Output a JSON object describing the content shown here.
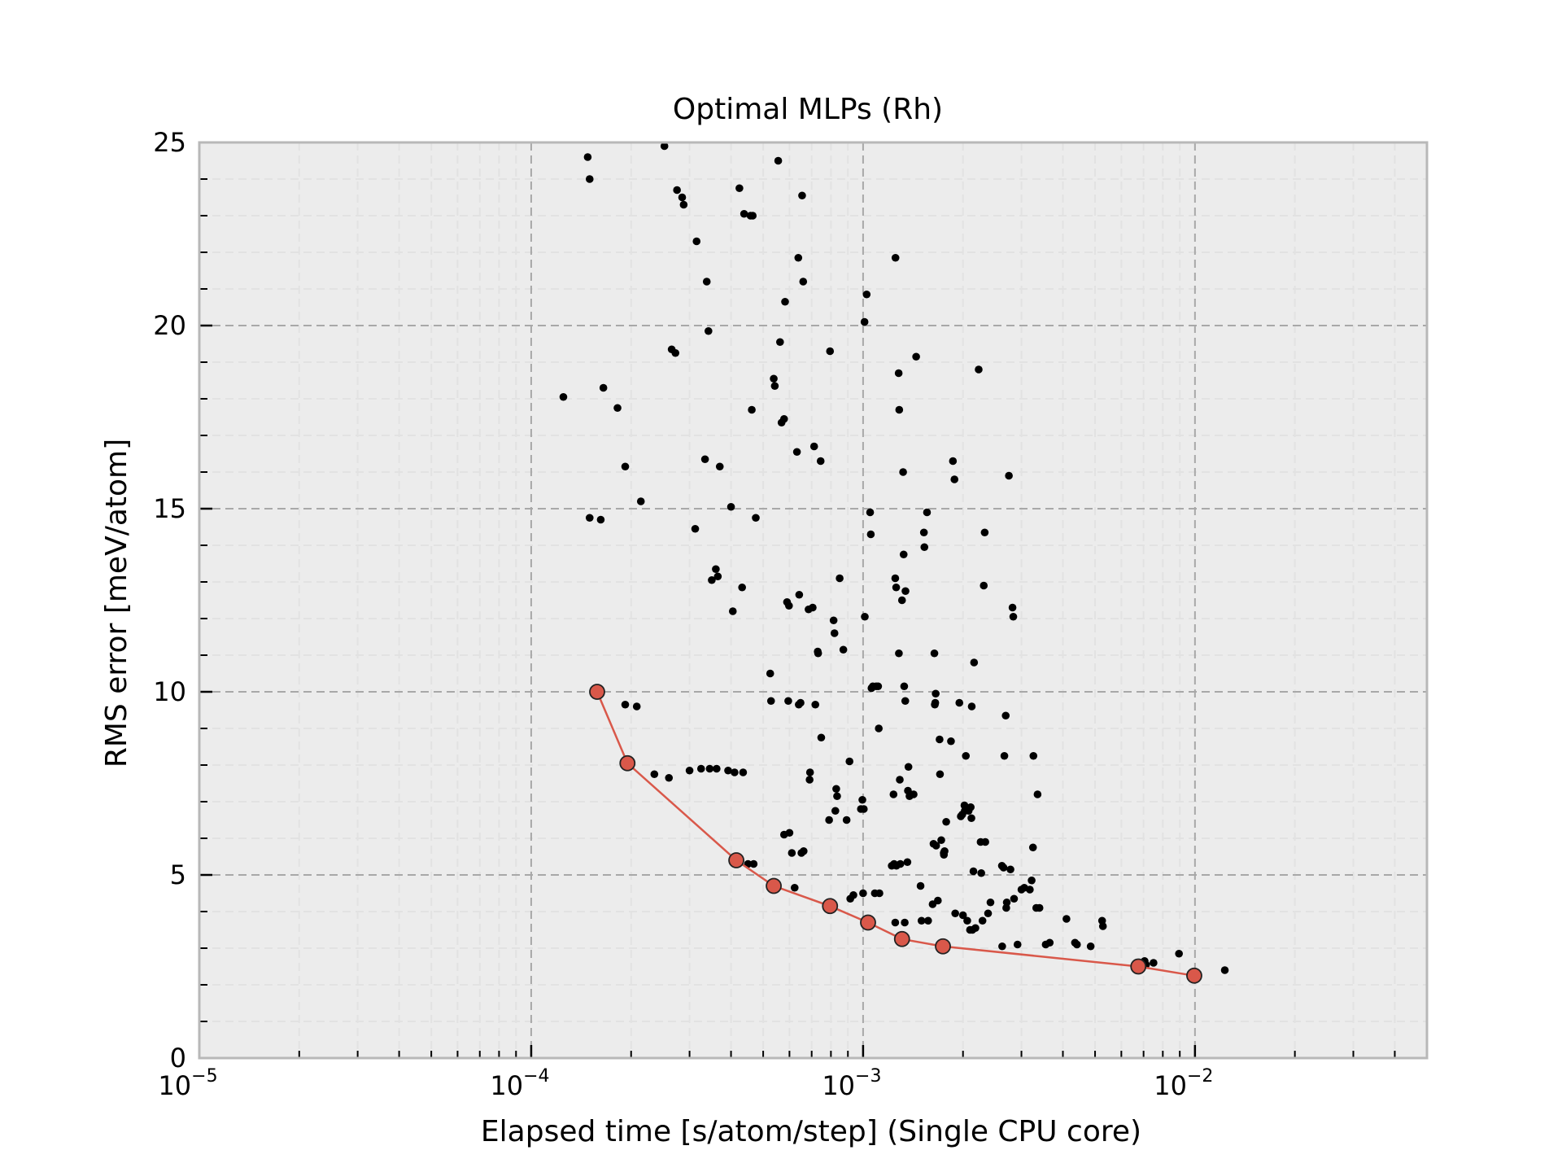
{
  "chart_data": {
    "type": "scatter",
    "title": "Optimal MLPs (Rh)",
    "xlabel": "Elapsed time [s/atom/step] (Single CPU core)",
    "ylabel": "RMS error [meV/atom]",
    "xscale": "log",
    "xlim": [
      1e-05,
      0.05
    ],
    "ylim": [
      0,
      25
    ],
    "grid": true,
    "x_ticks": [
      {
        "base": "10",
        "exp": "−5",
        "value": 1e-05
      },
      {
        "base": "10",
        "exp": "−4",
        "value": 0.0001
      },
      {
        "base": "10",
        "exp": "−3",
        "value": 0.001
      },
      {
        "base": "10",
        "exp": "−2",
        "value": 0.01
      }
    ],
    "y_ticks": [
      "0",
      "5",
      "10",
      "15",
      "20",
      "25"
    ],
    "colors": {
      "background": "#ececec",
      "frame": "#b8b8b8",
      "points": "#000000",
      "pareto": "#d9584a",
      "pareto_edge": "#222222"
    },
    "series": [
      {
        "kind": "points",
        "points": [
          [
            0.000125,
            18.05
          ],
          [
            0.000148,
            24.6
          ],
          [
            0.00015,
            24.0
          ],
          [
            0.00015,
            14.75
          ],
          [
            0.000162,
            14.7
          ],
          [
            0.000165,
            18.3
          ],
          [
            0.000182,
            17.75
          ],
          [
            0.000192,
            16.15
          ],
          [
            0.000192,
            9.65
          ],
          [
            0.000208,
            9.6
          ],
          [
            0.000214,
            15.2
          ],
          [
            0.000235,
            7.75
          ],
          [
            0.000252,
            24.9
          ],
          [
            0.00026,
            7.65
          ],
          [
            0.000265,
            19.35
          ],
          [
            0.000272,
            19.25
          ],
          [
            0.000275,
            23.7
          ],
          [
            0.000285,
            23.5
          ],
          [
            0.000288,
            23.3
          ],
          [
            0.0003,
            7.85
          ],
          [
            0.000312,
            14.45
          ],
          [
            0.000315,
            22.3
          ],
          [
            0.000325,
            7.9
          ],
          [
            0.000334,
            16.35
          ],
          [
            0.000338,
            21.2
          ],
          [
            0.000342,
            19.85
          ],
          [
            0.000345,
            7.9
          ],
          [
            0.00035,
            13.05
          ],
          [
            0.00036,
            13.35
          ],
          [
            0.000362,
            7.9
          ],
          [
            0.00037,
            16.15
          ],
          [
            0.000365,
            13.15
          ],
          [
            0.000392,
            7.85
          ],
          [
            0.0004,
            15.05
          ],
          [
            0.000405,
            12.2
          ],
          [
            0.00041,
            7.8
          ],
          [
            0.000424,
            23.75
          ],
          [
            0.000432,
            12.85
          ],
          [
            0.000435,
            7.8
          ],
          [
            0.000438,
            23.05
          ],
          [
            0.00045,
            5.3
          ],
          [
            0.000458,
            23.0
          ],
          [
            0.000465,
            23.0
          ],
          [
            0.000462,
            17.7
          ],
          [
            0.000468,
            5.3
          ],
          [
            0.000475,
            14.75
          ],
          [
            0.000525,
            10.5
          ],
          [
            0.000528,
            9.75
          ],
          [
            0.000538,
            18.55
          ],
          [
            0.000542,
            18.35
          ],
          [
            0.000555,
            24.5
          ],
          [
            0.000562,
            19.55
          ],
          [
            0.000568,
            17.35
          ],
          [
            0.000578,
            17.45
          ],
          [
            0.000582,
            20.65
          ],
          [
            0.000578,
            6.1
          ],
          [
            0.00059,
            12.45
          ],
          [
            0.000595,
            9.75
          ],
          [
            0.0006,
            6.15
          ],
          [
            0.000598,
            12.35
          ],
          [
            0.00061,
            5.6
          ],
          [
            0.000622,
            4.65
          ],
          [
            0.000632,
            16.55
          ],
          [
            0.000638,
            21.85
          ],
          [
            0.000642,
            12.65
          ],
          [
            0.00064,
            9.65
          ],
          [
            0.000648,
            9.7
          ],
          [
            0.000652,
            5.6
          ],
          [
            0.000655,
            23.55
          ],
          [
            0.00066,
            21.2
          ],
          [
            0.000662,
            5.65
          ],
          [
            0.000685,
            12.25
          ],
          [
            0.00069,
            7.6
          ],
          [
            0.000692,
            7.8
          ],
          [
            0.000705,
            12.3
          ],
          [
            0.000712,
            16.7
          ],
          [
            0.000718,
            9.65
          ],
          [
            0.000732,
            11.05
          ],
          [
            0.00073,
            11.1
          ],
          [
            0.000745,
            16.3
          ],
          [
            0.000748,
            8.75
          ],
          [
            0.00079,
            6.5
          ],
          [
            0.000795,
            19.3
          ],
          [
            0.000815,
            11.95
          ],
          [
            0.00082,
            11.6
          ],
          [
            0.000825,
            6.75
          ],
          [
            0.00083,
            7.35
          ],
          [
            0.000835,
            7.15
          ],
          [
            0.00085,
            13.1
          ],
          [
            0.000872,
            11.15
          ],
          [
            0.000892,
            6.5
          ],
          [
            0.00091,
            8.1
          ],
          [
            0.000915,
            4.35
          ],
          [
            0.000935,
            4.45
          ],
          [
            0.000985,
            6.8
          ],
          [
            0.000995,
            7.05
          ],
          [
            0.001,
            4.5
          ],
          [
            0.001005,
            6.8
          ],
          [
            0.00101,
            20.1
          ],
          [
            0.001012,
            12.05
          ],
          [
            0.001025,
            20.85
          ],
          [
            0.00105,
            14.9
          ],
          [
            0.001055,
            14.3
          ],
          [
            0.00106,
            10.1
          ],
          [
            0.00107,
            10.15
          ],
          [
            0.001085,
            4.5
          ],
          [
            0.001095,
            10.15
          ],
          [
            0.00111,
            10.15
          ],
          [
            0.001115,
            9.0
          ],
          [
            0.00112,
            4.5
          ],
          [
            0.00122,
            5.25
          ],
          [
            0.001235,
            7.2
          ],
          [
            0.00124,
            5.3
          ],
          [
            0.00125,
            3.7
          ],
          [
            0.001252,
            21.85
          ],
          [
            0.00125,
            13.1
          ],
          [
            0.001258,
            12.85
          ],
          [
            0.00126,
            5.25
          ],
          [
            0.00128,
            18.7
          ],
          [
            0.001282,
            11.05
          ],
          [
            0.001285,
            17.7
          ],
          [
            0.00129,
            7.6
          ],
          [
            0.001295,
            5.3
          ],
          [
            0.00131,
            12.5
          ],
          [
            0.00132,
            16.0
          ],
          [
            0.001325,
            13.75
          ],
          [
            0.00133,
            10.15
          ],
          [
            0.001335,
            3.7
          ],
          [
            0.00134,
            9.75
          ],
          [
            0.001342,
            12.75
          ],
          [
            0.00136,
            5.35
          ],
          [
            0.001365,
            7.3
          ],
          [
            0.00137,
            7.95
          ],
          [
            0.00138,
            7.15
          ],
          [
            0.00142,
            7.2
          ],
          [
            0.001445,
            19.15
          ],
          [
            0.00149,
            4.7
          ],
          [
            0.0015,
            3.75
          ],
          [
            0.001525,
            14.35
          ],
          [
            0.00153,
            13.95
          ],
          [
            0.001558,
            14.9
          ],
          [
            0.00157,
            3.75
          ],
          [
            0.00162,
            4.2
          ],
          [
            0.00163,
            5.85
          ],
          [
            0.00164,
            11.05
          ],
          [
            0.001645,
            9.65
          ],
          [
            0.00165,
            9.7
          ],
          [
            0.001655,
            9.95
          ],
          [
            0.00166,
            5.8
          ],
          [
            0.00168,
            4.3
          ],
          [
            0.0017,
            8.7
          ],
          [
            0.001705,
            7.75
          ],
          [
            0.00172,
            5.95
          ],
          [
            0.00175,
            5.6
          ],
          [
            0.001752,
            5.55
          ],
          [
            0.00176,
            5.65
          ],
          [
            0.00178,
            6.45
          ],
          [
            0.00184,
            8.65
          ],
          [
            0.001865,
            16.3
          ],
          [
            0.001885,
            15.8
          ],
          [
            0.001895,
            3.95
          ],
          [
            0.00195,
            9.7
          ],
          [
            0.00197,
            6.6
          ],
          [
            0.00199,
            6.65
          ],
          [
            0.002,
            3.9
          ],
          [
            0.00202,
            6.9
          ],
          [
            0.002025,
            6.75
          ],
          [
            0.00204,
            8.25
          ],
          [
            0.00206,
            3.75
          ],
          [
            0.00208,
            6.75
          ],
          [
            0.0021,
            3.5
          ],
          [
            0.00211,
            6.85
          ],
          [
            0.00212,
            6.55
          ],
          [
            0.002125,
            9.6
          ],
          [
            0.002135,
            3.5
          ],
          [
            0.00215,
            5.1
          ],
          [
            0.00216,
            10.8
          ],
          [
            0.00218,
            3.55
          ],
          [
            0.00223,
            18.8
          ],
          [
            0.00226,
            5.9
          ],
          [
            0.00227,
            5.05
          ],
          [
            0.00229,
            3.75
          ],
          [
            0.00231,
            12.9
          ],
          [
            0.002325,
            14.35
          ],
          [
            0.002335,
            5.9
          ],
          [
            0.00238,
            3.95
          ],
          [
            0.00242,
            4.25
          ],
          [
            0.00262,
            5.25
          ],
          [
            0.002625,
            3.05
          ],
          [
            0.00265,
            5.2
          ],
          [
            0.002665,
            8.25
          ],
          [
            0.00269,
            9.35
          ],
          [
            0.0027,
            4.1
          ],
          [
            0.00271,
            4.25
          ],
          [
            0.00275,
            15.9
          ],
          [
            0.00278,
            5.15
          ],
          [
            0.00282,
            12.3
          ],
          [
            0.002835,
            12.05
          ],
          [
            0.00285,
            4.35
          ],
          [
            0.00292,
            3.1
          ],
          [
            0.003,
            4.6
          ],
          [
            0.00306,
            4.65
          ],
          [
            0.00318,
            4.6
          ],
          [
            0.00322,
            4.85
          ],
          [
            0.00325,
            5.75
          ],
          [
            0.00326,
            8.25
          ],
          [
            0.003325,
            4.1
          ],
          [
            0.003355,
            7.2
          ],
          [
            0.0034,
            4.1
          ],
          [
            0.00355,
            3.1
          ],
          [
            0.00365,
            3.15
          ],
          [
            0.0041,
            3.8
          ],
          [
            0.00435,
            3.15
          ],
          [
            0.00441,
            3.1
          ],
          [
            0.00485,
            3.05
          ],
          [
            0.00525,
            3.75
          ],
          [
            0.00528,
            3.6
          ],
          [
            0.00705,
            2.65
          ],
          [
            0.00712,
            2.55
          ],
          [
            0.0075,
            2.6
          ],
          [
            0.00895,
            2.85
          ],
          [
            0.0123,
            2.4
          ]
        ]
      },
      {
        "kind": "pareto_line",
        "points": [
          [
            0.000158,
            10.0
          ],
          [
            0.000195,
            8.05
          ],
          [
            0.000415,
            5.4
          ],
          [
            0.000538,
            4.7
          ],
          [
            0.000795,
            4.15
          ],
          [
            0.001035,
            3.7
          ],
          [
            0.00131,
            3.25
          ],
          [
            0.00174,
            3.05
          ],
          [
            0.00675,
            2.5
          ],
          [
            0.00995,
            2.25
          ]
        ]
      }
    ]
  }
}
